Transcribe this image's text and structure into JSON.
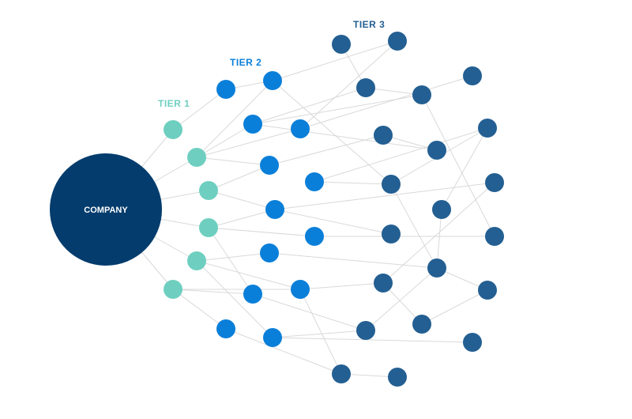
{
  "company": {
    "label": "COMPANY",
    "color": "#033c6d"
  },
  "tiers": [
    {
      "id": "t1",
      "label": "TIER 1",
      "color": "#6ecfc0"
    },
    {
      "id": "t2",
      "label": "TIER 2",
      "color": "#0a7fd9"
    },
    {
      "id": "t3",
      "label": "TIER 3",
      "color": "#235f92"
    }
  ],
  "edge_color": "#d9d9d9"
}
